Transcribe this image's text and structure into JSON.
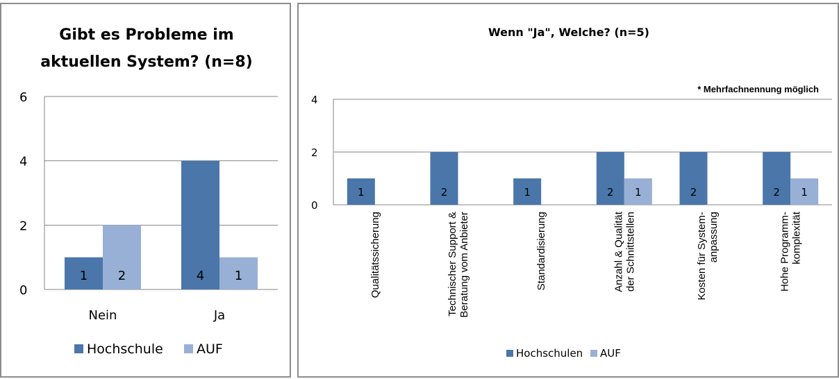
{
  "colors": {
    "series1": "#4a76aa",
    "series2": "#98b0d5",
    "grid": "#868686",
    "border": "#8c8c8c"
  },
  "chart_data": [
    {
      "type": "bar",
      "title": [
        "Gibt es Probleme im",
        "aktuellen System? (n=8)"
      ],
      "categories": [
        "Nein",
        "Ja"
      ],
      "series": [
        {
          "name": "Hochschule",
          "values": [
            1,
            4
          ]
        },
        {
          "name": "AUF",
          "values": [
            2,
            1
          ]
        }
      ],
      "data_labels": [
        [
          "1",
          "4"
        ],
        [
          "2",
          "1"
        ]
      ],
      "yticks": [
        "0",
        "2",
        "4",
        "6"
      ],
      "ylim": [
        0,
        6
      ],
      "grid": true,
      "legend_position": "bottom"
    },
    {
      "type": "bar",
      "title": "Wenn \"Ja\", Welche?  (n=5)",
      "annotation": "* Mehrfachnennung möglich",
      "categories": [
        [
          "Qualitätssicherung"
        ],
        [
          "Technischer Support &",
          "Beratung vom Anbieter"
        ],
        [
          "Standardisierung"
        ],
        [
          "Anzahl & Qualität",
          "der Schnittstellen"
        ],
        [
          "Kosten für System-",
          "anpassung"
        ],
        [
          "Hohe Programm-",
          "komplexität"
        ]
      ],
      "series": [
        {
          "name": "Hochschulen",
          "values": [
            1,
            2,
            1,
            2,
            2,
            2
          ]
        },
        {
          "name": "AUF",
          "values": [
            0,
            0,
            0,
            1,
            0,
            1
          ]
        }
      ],
      "data_labels": [
        [
          "1",
          "2",
          "1",
          "2",
          "2",
          "2"
        ],
        [
          "",
          "",
          "",
          "1",
          "",
          "1"
        ]
      ],
      "yticks": [
        "0",
        "2",
        "4"
      ],
      "ylim": [
        0,
        4
      ],
      "grid": true,
      "legend_position": "bottom"
    }
  ]
}
